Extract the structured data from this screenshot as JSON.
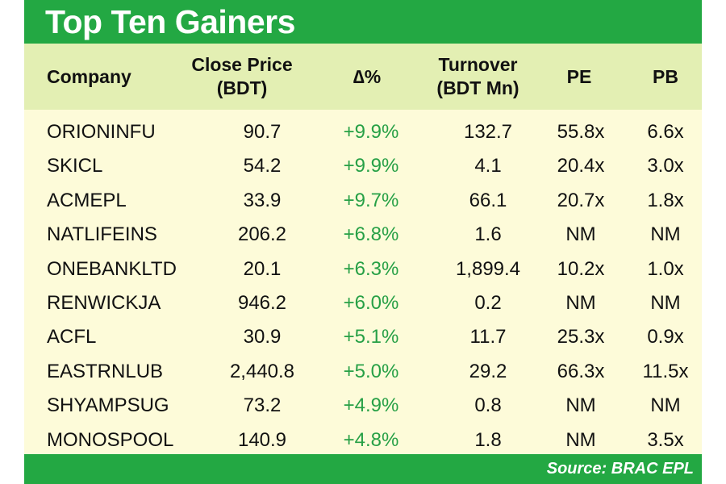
{
  "title": "Top Ten Gainers",
  "columns": {
    "company": "Company",
    "close_price_1": "Close Price",
    "close_price_2": "(BDT)",
    "change": "∆%",
    "turnover_1": "Turnover",
    "turnover_2": "(BDT Mn)",
    "pe": "PE",
    "pb": "PB"
  },
  "rows": [
    {
      "company": "ORIONINFU",
      "close": "90.7",
      "change": "+9.9%",
      "turnover": "132.7",
      "pe": "55.8x",
      "pb": "6.6x"
    },
    {
      "company": "SKICL",
      "close": "54.2",
      "change": "+9.9%",
      "turnover": "4.1",
      "pe": "20.4x",
      "pb": "3.0x"
    },
    {
      "company": "ACMEPL",
      "close": "33.9",
      "change": "+9.7%",
      "turnover": "66.1",
      "pe": "20.7x",
      "pb": "1.8x"
    },
    {
      "company": "NATLIFEINS",
      "close": "206.2",
      "change": "+6.8%",
      "turnover": "1.6",
      "pe": "NM",
      "pb": "NM"
    },
    {
      "company": "ONEBANKLTD",
      "close": "20.1",
      "change": "+6.3%",
      "turnover": "1,899.4",
      "pe": "10.2x",
      "pb": "1.0x"
    },
    {
      "company": "RENWICKJA",
      "close": "946.2",
      "change": "+6.0%",
      "turnover": "0.2",
      "pe": "NM",
      "pb": "NM"
    },
    {
      "company": "ACFL",
      "close": "30.9",
      "change": "+5.1%",
      "turnover": "11.7",
      "pe": "25.3x",
      "pb": "0.9x"
    },
    {
      "company": "EASTRNLUB",
      "close": "2,440.8",
      "change": "+5.0%",
      "turnover": "29.2",
      "pe": "66.3x",
      "pb": "11.5x"
    },
    {
      "company": "SHYAMPSUG",
      "close": "73.2",
      "change": "+4.9%",
      "turnover": "0.8",
      "pe": "NM",
      "pb": "NM"
    },
    {
      "company": "MONOSPOOL",
      "close": "140.9",
      "change": "+4.8%",
      "turnover": "1.8",
      "pe": "NM",
      "pb": "3.5x"
    }
  ],
  "source": "Source: BRAC EPL",
  "colors": {
    "brand_green": "#23a843",
    "header_band": "#e3efb3",
    "body_bg": "#fdfbd9",
    "positive_change": "#27a046"
  }
}
